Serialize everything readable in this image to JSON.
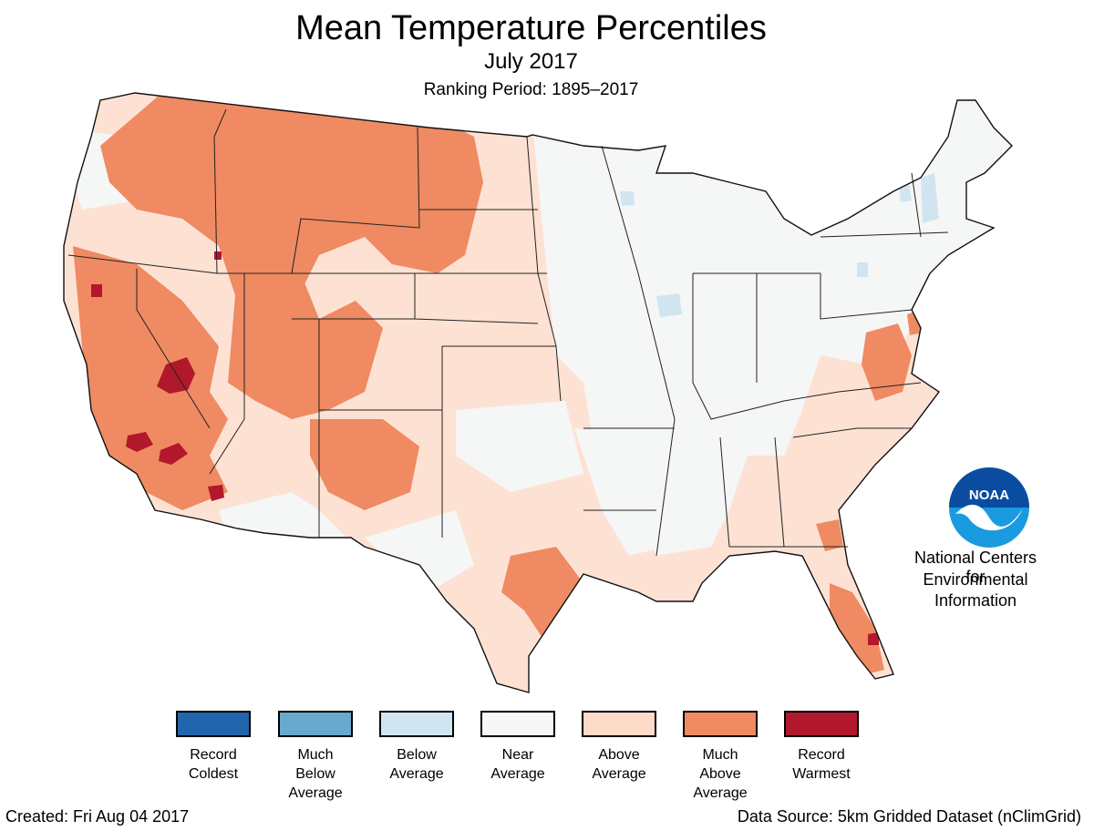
{
  "title": "Mean Temperature Percentiles",
  "subtitle": "July 2017",
  "ranking_period": "Ranking Period: 1895–2017",
  "legend": [
    {
      "lines": [
        "Record",
        "Coldest"
      ],
      "color": "#2166ac"
    },
    {
      "lines": [
        "Much",
        "Below",
        "Average"
      ],
      "color": "#67a9cf"
    },
    {
      "lines": [
        "Below",
        "Average"
      ],
      "color": "#d1e5f0"
    },
    {
      "lines": [
        "Near",
        "Average"
      ],
      "color": "#f7f7f7"
    },
    {
      "lines": [
        "Above",
        "Average"
      ],
      "color": "#fddbc7"
    },
    {
      "lines": [
        "Much",
        "Above",
        "Average"
      ],
      "color": "#ef8a62"
    },
    {
      "lines": [
        "Record",
        "Warmest"
      ],
      "color": "#b2182b"
    }
  ],
  "logo_text": "NOAA",
  "org": [
    "National Centers for",
    "Environmental",
    "Information"
  ],
  "created": "Created: Fri Aug 04 2017",
  "data_source": "Data Source: 5km Gridded Dataset (nClimGrid)",
  "map_icon": "us-contiguous-states-map"
}
